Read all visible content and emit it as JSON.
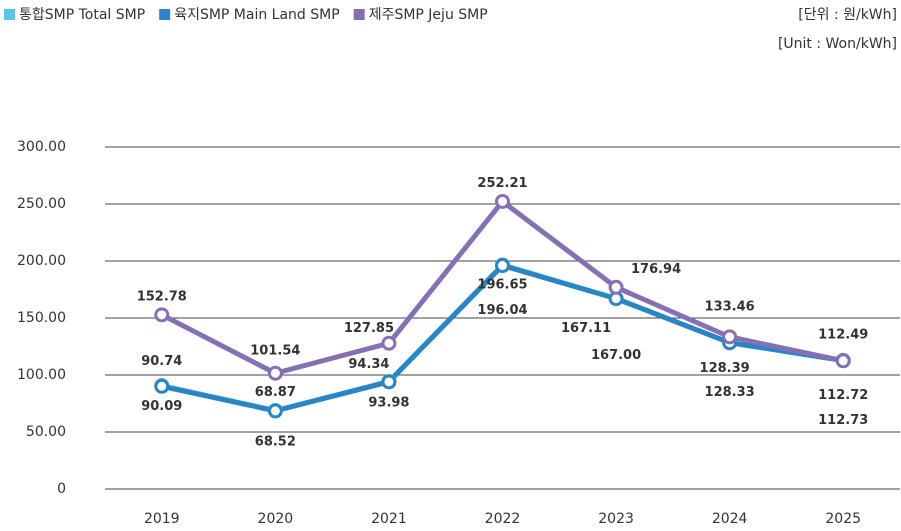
{
  "chart_data": {
    "type": "line",
    "unit_ko": "[단위 : 원/kWh]",
    "unit_en": "[Unit : Won/kWh]",
    "categories": [
      "2019",
      "2020",
      "2021",
      "2022",
      "2023",
      "2024",
      "2025"
    ],
    "series": [
      {
        "name": "통합SMP Total SMP",
        "color": "#5cc3eb",
        "values": [
          90.74,
          68.87,
          94.34,
          196.65,
          167.11,
          128.39,
          112.72
        ],
        "value_labels": [
          "90.74",
          "68.87",
          "94.34",
          "196.65",
          "167.11",
          "128.39",
          "112.72"
        ]
      },
      {
        "name": "육지SMP Main Land SMP",
        "color": "#2a85c5",
        "values": [
          90.09,
          68.52,
          93.98,
          196.04,
          167.0,
          128.33,
          112.73
        ],
        "value_labels": [
          "90.09",
          "68.52",
          "93.98",
          "196.04",
          "167.00",
          "128.33",
          "112.73"
        ]
      },
      {
        "name": "제주SMP Jeju SMP",
        "color": "#8670b5",
        "values": [
          152.78,
          101.54,
          127.85,
          252.21,
          176.94,
          133.46,
          112.49
        ],
        "value_labels": [
          "152.78",
          "101.54",
          "127.85",
          "252.21",
          "176.94",
          "133.46",
          "112.49"
        ]
      }
    ],
    "ylim": [
      0,
      300
    ],
    "yticks": [
      0,
      {
        "value": 50,
        "label": "50.00"
      },
      {
        "value": 100,
        "label": "100.00"
      },
      {
        "value": 150,
        "label": "150.00"
      },
      {
        "value": 200,
        "label": "200.00"
      },
      {
        "value": 250,
        "label": "250.00"
      },
      {
        "value": 300,
        "label": "300.00"
      }
    ],
    "grid": true
  }
}
